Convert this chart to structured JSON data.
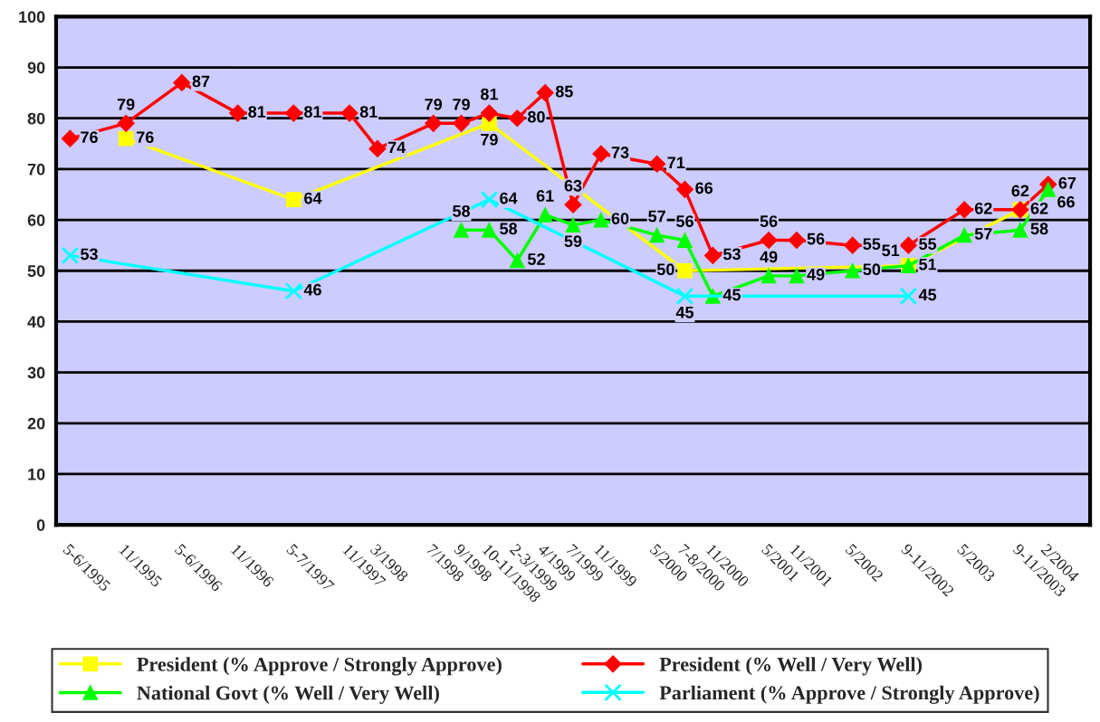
{
  "chart_data": {
    "type": "line",
    "categories": [
      "5-6/1995",
      null,
      "11/1995",
      null,
      "5-6/1996",
      null,
      "11/1996",
      null,
      "5-7/1997",
      null,
      "11/1997",
      "3/1998",
      null,
      "7/1998",
      "9/1998",
      "10-11/1998",
      "2-3/1999",
      "4/1999",
      "7/1999",
      "11/1999",
      null,
      "5/2000",
      "7-8/2000",
      "11/2000",
      null,
      "5/2001",
      "11/2001",
      null,
      "5/2002",
      null,
      "9-11/2002",
      null,
      "5/2003",
      null,
      "9-11/2003",
      "2/2004",
      null
    ],
    "series": [
      {
        "name": "President (% Approve / Strongly Approve)",
        "color": "#ffff00",
        "marker": "square",
        "values": [
          null,
          null,
          76,
          null,
          null,
          null,
          null,
          null,
          64,
          null,
          null,
          null,
          null,
          null,
          null,
          79,
          null,
          null,
          null,
          null,
          null,
          null,
          50,
          null,
          null,
          null,
          null,
          null,
          null,
          null,
          51,
          null,
          null,
          null,
          62,
          null,
          null
        ]
      },
      {
        "name": "President (% Well / Very Well)",
        "color": "#ff0000",
        "marker": "diamond",
        "values": [
          76,
          null,
          79,
          null,
          87,
          null,
          81,
          null,
          81,
          null,
          81,
          74,
          null,
          79,
          79,
          81,
          80,
          85,
          63,
          73,
          null,
          71,
          66,
          53,
          null,
          56,
          56,
          null,
          55,
          null,
          55,
          null,
          62,
          null,
          62,
          67,
          null
        ]
      },
      {
        "name": "National Govt (% Well / Very Well)",
        "color": "#00ff00",
        "marker": "triangle",
        "values": [
          null,
          null,
          null,
          null,
          null,
          null,
          null,
          null,
          null,
          null,
          null,
          null,
          null,
          null,
          58,
          58,
          52,
          61,
          59,
          60,
          null,
          57,
          56,
          45,
          null,
          49,
          49,
          null,
          50,
          null,
          51,
          null,
          57,
          null,
          58,
          66,
          null
        ]
      },
      {
        "name": "Parliament (% Approve / Strongly Approve)",
        "color": "#00ffff",
        "marker": "cross",
        "values": [
          53,
          null,
          null,
          null,
          null,
          null,
          null,
          null,
          46,
          null,
          null,
          null,
          null,
          null,
          null,
          64,
          null,
          null,
          null,
          null,
          null,
          null,
          45,
          null,
          null,
          null,
          null,
          null,
          null,
          null,
          45,
          null,
          null,
          null,
          null,
          null,
          null
        ]
      }
    ],
    "ylim": [
      0,
      100
    ],
    "yticks": [
      0,
      10,
      20,
      30,
      40,
      50,
      60,
      70,
      80,
      90,
      100
    ],
    "grid": "y",
    "legend": "bottom",
    "data_labels": true
  }
}
